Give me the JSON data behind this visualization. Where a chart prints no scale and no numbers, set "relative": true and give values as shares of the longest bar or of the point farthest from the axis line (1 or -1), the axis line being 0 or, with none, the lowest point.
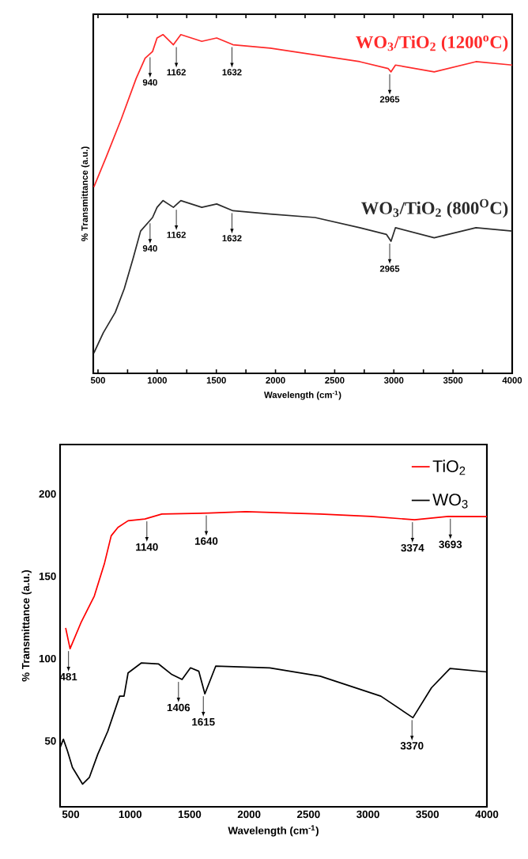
{
  "chart_data": [
    {
      "type": "line",
      "relative": true,
      "xlabel": "Wavelength (cm$^{-1}$)",
      "ylabel": "% Transmittance (a.u.)",
      "tick_labels": "x",
      "xlim": [
        460,
        4000
      ],
      "xticks": [
        500,
        {
          "value": 750,
          "label": null
        },
        1000,
        {
          "value": 1250,
          "label": null
        },
        1500,
        {
          "value": 1750,
          "label": null
        },
        2000,
        {
          "value": 2250,
          "label": null
        },
        2500,
        {
          "value": 2750,
          "label": null
        },
        3000,
        {
          "value": 3250,
          "label": null
        },
        3500,
        {
          "value": 3750,
          "label": null
        },
        4000
      ],
      "series": [
        {
          "name": "WO$_{3}$/TiO$_{2}$ (1200$^{o}$C)",
          "color": "#ff2a2a",
          "x": [
            465,
            571,
            696,
            822,
            898,
            961,
            999,
            1049,
            1137,
            1200,
            1377,
            1503,
            1641,
            1956,
            2334,
            2712,
            2951,
            2976,
            3014,
            3341,
            3694,
            4000
          ],
          "values": [
            0.55,
            0.64,
            0.75,
            0.87,
            0.93,
            0.95,
            0.99,
            1.0,
            0.97,
            1.0,
            0.98,
            0.99,
            0.97,
            0.96,
            0.94,
            0.92,
            0.9,
            0.89,
            0.91,
            0.89,
            0.92,
            0.91
          ]
        },
        {
          "name": "WO$_{3}$/TiO$_{2}$ (800$^{O}$C)",
          "color": "#2b2b2b",
          "x": [
            465,
            545,
            646,
            722,
            797,
            860,
            936,
            961,
            999,
            1049,
            1137,
            1200,
            1377,
            1503,
            1641,
            1956,
            2334,
            2712,
            2938,
            2976,
            3014,
            3341,
            3694,
            4000
          ],
          "values": [
            0.06,
            0.12,
            0.18,
            0.25,
            0.34,
            0.42,
            0.45,
            0.46,
            0.49,
            0.51,
            0.49,
            0.51,
            0.49,
            0.5,
            0.48,
            0.47,
            0.46,
            0.43,
            0.41,
            0.39,
            0.43,
            0.4,
            0.43,
            0.42
          ]
        }
      ],
      "annotations": [
        {
          "text": "940",
          "x": 940,
          "y": 0.94
        },
        {
          "text": "1162",
          "x": 1162,
          "y": 0.97
        },
        {
          "text": "1632",
          "x": 1632,
          "y": 0.97
        },
        {
          "text": "2965",
          "x": 2965,
          "y": 0.89
        },
        {
          "text": "940",
          "x": 940,
          "y": 0.45
        },
        {
          "text": "1162",
          "x": 1162,
          "y": 0.49
        },
        {
          "text": "1632",
          "x": 1632,
          "y": 0.48
        },
        {
          "text": "2965",
          "x": 2965,
          "y": 0.39
        }
      ]
    },
    {
      "type": "line",
      "xlabel": "Wavelength (cm$^{-1}$)",
      "ylabel": "% Transmittance (a.u.)",
      "legend": "top right",
      "xlim": [
        410,
        4000
      ],
      "ylim": [
        10,
        230
      ],
      "xticks": [
        500,
        1000,
        1500,
        2000,
        2500,
        3000,
        3500,
        4000
      ],
      "yticks": [
        50,
        100,
        150,
        200
      ],
      "series": [
        {
          "name": "TiO$_{2}$",
          "color": "#ff0000",
          "x": [
            457,
            494,
            585,
            698,
            784,
            840,
            897,
            982,
            1124,
            1266,
            1662,
            1974,
            2598,
            3023,
            3392,
            3675,
            4000
          ],
          "values": [
            118.6,
            106,
            121.7,
            138,
            158,
            174.6,
            179.7,
            183.7,
            184.8,
            187.8,
            188.4,
            189.2,
            187.8,
            186.4,
            184.3,
            186.4,
            186.2
          ]
        },
        {
          "name": "WO$_{3}$",
          "color": "#000000",
          "x": [
            410,
            438,
            472,
            514,
            599,
            656,
            727,
            812,
            911,
            948,
            982,
            1095,
            1237,
            1351,
            1436,
            1507,
            1577,
            1628,
            1719,
            2173,
            2598,
            3108,
            3378,
            3534,
            3690,
            4000
          ],
          "values": [
            46,
            51,
            44,
            33.9,
            23.8,
            27.8,
            41.9,
            56,
            77.2,
            77.2,
            91.3,
            97.4,
            96.8,
            90.3,
            87.3,
            94.4,
            92.3,
            78.6,
            95.4,
            94.4,
            89.3,
            77.2,
            64.1,
            82.3,
            94,
            91.9
          ]
        }
      ],
      "annotations": [
        {
          "text": "481",
          "x": 481,
          "y": 106
        },
        {
          "text": "1140",
          "x": 1140,
          "y": 184.8
        },
        {
          "text": "1640",
          "x": 1640,
          "y": 188.4
        },
        {
          "text": "3374",
          "x": 3374,
          "y": 184.3
        },
        {
          "text": "3693",
          "x": 3693,
          "y": 186.4
        },
        {
          "text": "1406",
          "x": 1406,
          "y": 87.3
        },
        {
          "text": "1615",
          "x": 1615,
          "y": 78.6
        },
        {
          "text": "3370",
          "x": 3370,
          "y": 64.1
        }
      ]
    }
  ]
}
